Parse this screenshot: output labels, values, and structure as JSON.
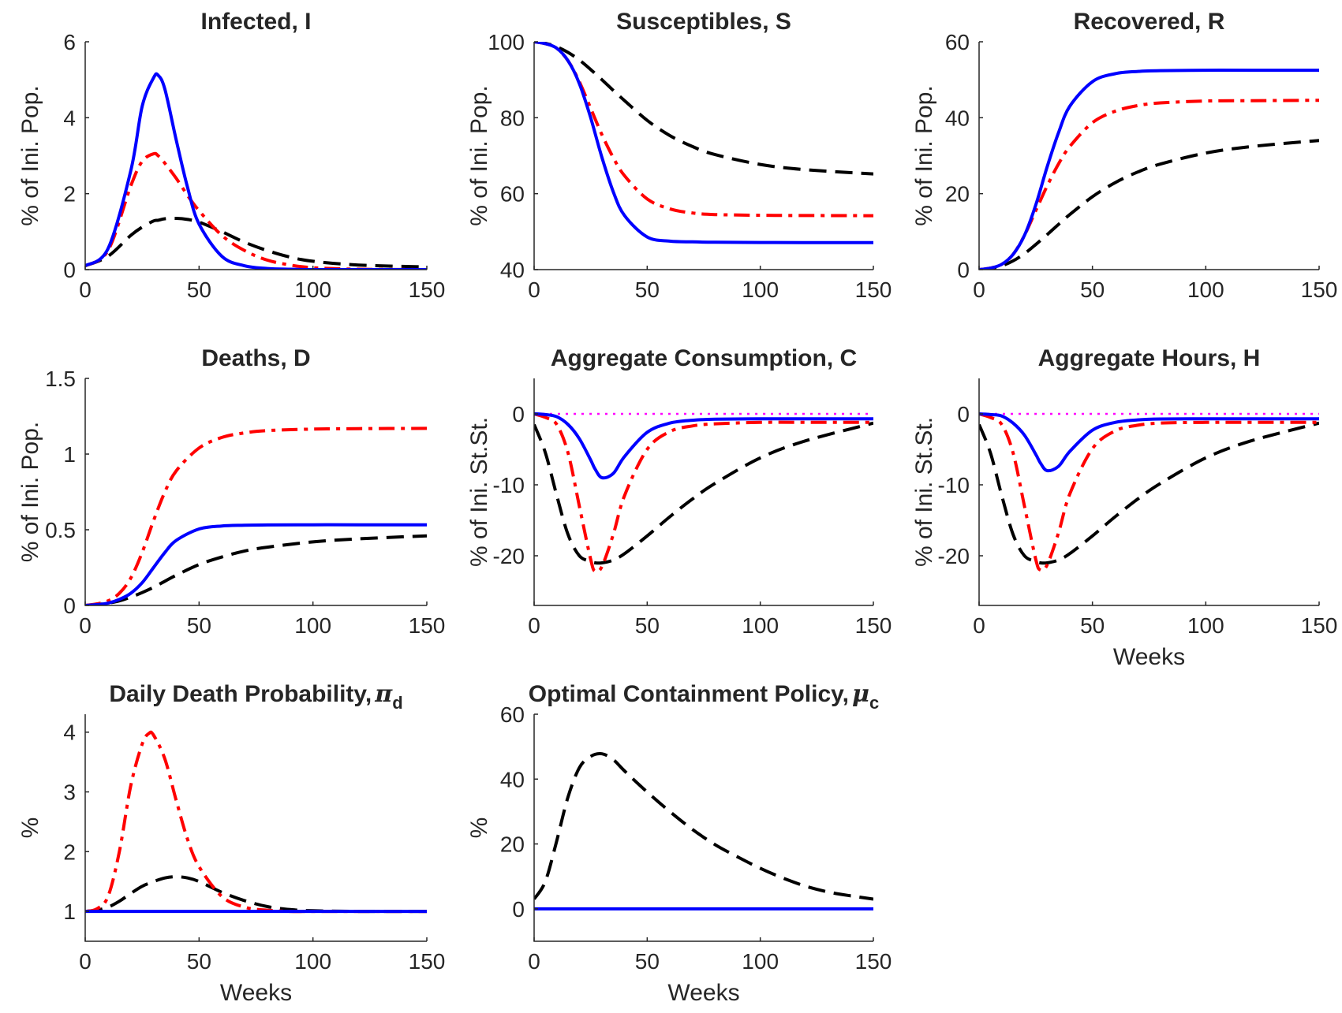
{
  "colors": {
    "blue": "#0000ff",
    "red": "#ff0000",
    "black": "#000000",
    "magenta": "#ff00ff",
    "axis": "#262626"
  },
  "chart_data": [
    {
      "id": "infected",
      "type": "line",
      "title": "Infected, I",
      "xlabel": "",
      "ylabel": "% of Ini. Pop.",
      "xlim": [
        0,
        150
      ],
      "ylim": [
        0,
        6
      ],
      "xticks": [
        0,
        50,
        100,
        150
      ],
      "yticks": [
        0,
        2,
        4,
        6
      ],
      "x": [
        0,
        10,
        20,
        25,
        30,
        32,
        35,
        40,
        45,
        50,
        60,
        70,
        80,
        90,
        100,
        120,
        150
      ],
      "series": [
        {
          "style": "black-dashed",
          "values": [
            0.1,
            0.35,
            0.9,
            1.12,
            1.28,
            1.3,
            1.34,
            1.35,
            1.32,
            1.25,
            1.0,
            0.72,
            0.5,
            0.33,
            0.22,
            0.12,
            0.07
          ]
        },
        {
          "style": "red-dashdot",
          "values": [
            0.1,
            0.5,
            2.2,
            2.85,
            3.05,
            3.0,
            2.8,
            2.4,
            1.95,
            1.55,
            0.9,
            0.5,
            0.25,
            0.12,
            0.05,
            0.01,
            0.0
          ]
        },
        {
          "style": "blue-solid",
          "values": [
            0.1,
            0.55,
            2.6,
            4.3,
            5.05,
            5.12,
            4.75,
            3.4,
            2.15,
            1.2,
            0.35,
            0.1,
            0.03,
            0.01,
            0.0,
            0.0,
            0.0
          ]
        }
      ]
    },
    {
      "id": "susceptibles",
      "type": "line",
      "title": "Susceptibles, S",
      "xlabel": "",
      "ylabel": "% of Ini. Pop.",
      "xlim": [
        0,
        150
      ],
      "ylim": [
        40,
        100
      ],
      "xticks": [
        0,
        50,
        100,
        150
      ],
      "yticks": [
        40,
        60,
        80,
        100
      ],
      "x": [
        0,
        5,
        10,
        15,
        20,
        25,
        30,
        35,
        40,
        50,
        60,
        70,
        80,
        100,
        120,
        150
      ],
      "series": [
        {
          "style": "black-dashed",
          "values": [
            100,
            99.6,
            98.7,
            97.2,
            95.2,
            92.7,
            90.0,
            87.2,
            84.5,
            79.3,
            75.3,
            72.4,
            70.3,
            67.7,
            66.3,
            65.2
          ]
        },
        {
          "style": "red-dashdot",
          "values": [
            100,
            99.5,
            98.3,
            95.0,
            89.5,
            82.5,
            75.5,
            69.5,
            64.7,
            58.6,
            56.0,
            54.9,
            54.5,
            54.3,
            54.25,
            54.2
          ]
        },
        {
          "style": "blue-solid",
          "values": [
            100,
            99.5,
            98.3,
            95.0,
            89.0,
            80.0,
            69.5,
            60.5,
            54.2,
            48.6,
            47.5,
            47.3,
            47.2,
            47.15,
            47.1,
            47.1
          ]
        }
      ]
    },
    {
      "id": "recovered",
      "type": "line",
      "title": "Recovered, R",
      "xlabel": "",
      "ylabel": "% of Ini. Pop.",
      "xlim": [
        0,
        150
      ],
      "ylim": [
        0,
        60
      ],
      "xticks": [
        0,
        50,
        100,
        150
      ],
      "yticks": [
        0,
        20,
        40,
        60
      ],
      "x": [
        0,
        5,
        10,
        15,
        20,
        25,
        30,
        35,
        40,
        50,
        60,
        70,
        80,
        100,
        120,
        150
      ],
      "series": [
        {
          "style": "black-dashed",
          "values": [
            0,
            0.3,
            1.0,
            2.3,
            4.2,
            6.6,
            9.2,
            11.9,
            14.5,
            19.2,
            22.9,
            25.7,
            27.8,
            30.7,
            32.4,
            34.0
          ]
        },
        {
          "style": "red-dashdot",
          "values": [
            0,
            0.4,
            1.4,
            4.0,
            9.0,
            15.5,
            22.0,
            27.8,
            32.4,
            38.7,
            41.7,
            43.2,
            43.9,
            44.4,
            44.5,
            44.6
          ]
        },
        {
          "style": "blue-solid",
          "values": [
            0,
            0.4,
            1.4,
            4.0,
            9.0,
            17.0,
            27.0,
            36.0,
            43.0,
            49.5,
            51.6,
            52.2,
            52.4,
            52.5,
            52.5,
            52.5
          ]
        }
      ]
    },
    {
      "id": "deaths",
      "type": "line",
      "title": "Deaths, D",
      "xlabel": "",
      "ylabel": "% of Ini. Pop.",
      "xlim": [
        0,
        150
      ],
      "ylim": [
        0,
        1.5
      ],
      "xticks": [
        0,
        50,
        100,
        150
      ],
      "yticks": [
        0,
        0.5,
        1,
        1.5
      ],
      "x": [
        0,
        5,
        10,
        15,
        20,
        25,
        30,
        35,
        40,
        50,
        60,
        70,
        80,
        100,
        120,
        150
      ],
      "series": [
        {
          "style": "black-dashed",
          "values": [
            0,
            0.005,
            0.015,
            0.03,
            0.055,
            0.085,
            0.12,
            0.16,
            0.2,
            0.27,
            0.32,
            0.36,
            0.385,
            0.42,
            0.44,
            0.46
          ]
        },
        {
          "style": "red-dashdot",
          "values": [
            0,
            0.01,
            0.03,
            0.08,
            0.18,
            0.35,
            0.56,
            0.75,
            0.89,
            1.04,
            1.11,
            1.14,
            1.155,
            1.165,
            1.168,
            1.17
          ]
        },
        {
          "style": "blue-solid",
          "values": [
            0,
            0.005,
            0.015,
            0.04,
            0.08,
            0.15,
            0.25,
            0.35,
            0.43,
            0.505,
            0.525,
            0.53,
            0.532,
            0.533,
            0.533,
            0.533
          ]
        }
      ]
    },
    {
      "id": "consumption",
      "type": "line",
      "title": "Aggregate Consumption, C",
      "xlabel": "",
      "ylabel": "% of Ini. St.St.",
      "xlim": [
        0,
        150
      ],
      "ylim": [
        -27,
        5
      ],
      "xticks": [
        0,
        50,
        100,
        150
      ],
      "yticks": [
        -20,
        -10,
        0
      ],
      "x": [
        0,
        5,
        10,
        15,
        20,
        25,
        27,
        30,
        35,
        40,
        50,
        60,
        70,
        80,
        100,
        120,
        150
      ],
      "series": [
        {
          "style": "black-dashed",
          "values": [
            -1.5,
            -5.5,
            -11.5,
            -17.0,
            -20.0,
            -20.8,
            -21.0,
            -21.0,
            -20.6,
            -19.7,
            -17.2,
            -14.5,
            -12.0,
            -9.8,
            -6.2,
            -3.8,
            -1.3
          ]
        },
        {
          "style": "red-dashdot",
          "values": [
            0,
            -0.5,
            -1.5,
            -5.5,
            -13.0,
            -20.5,
            -22.2,
            -21.5,
            -17.0,
            -11.5,
            -5.0,
            -2.5,
            -1.7,
            -1.4,
            -1.2,
            -1.2,
            -1.2
          ]
        },
        {
          "style": "blue-solid",
          "values": [
            0,
            -0.1,
            -0.4,
            -1.5,
            -3.5,
            -6.5,
            -7.8,
            -9.0,
            -8.4,
            -6.0,
            -2.6,
            -1.3,
            -0.9,
            -0.75,
            -0.7,
            -0.7,
            -0.7
          ]
        },
        {
          "style": "magenta-dotted",
          "values": [
            0,
            0,
            0,
            0,
            0,
            0,
            0,
            0,
            0,
            0,
            0,
            0,
            0,
            0,
            0,
            0,
            0
          ]
        }
      ]
    },
    {
      "id": "hours",
      "type": "line",
      "title": "Aggregate Hours, H",
      "xlabel": "Weeks",
      "ylabel": "% of Ini. St.St.",
      "xlim": [
        0,
        150
      ],
      "ylim": [
        -27,
        5
      ],
      "xticks": [
        0,
        50,
        100,
        150
      ],
      "yticks": [
        -20,
        -10,
        0
      ],
      "x": [
        0,
        5,
        10,
        15,
        20,
        25,
        27,
        30,
        35,
        40,
        50,
        60,
        70,
        80,
        100,
        120,
        150
      ],
      "series": [
        {
          "style": "black-dashed",
          "values": [
            -1.5,
            -5.5,
            -11.5,
            -17.0,
            -20.0,
            -20.8,
            -21.0,
            -21.0,
            -20.6,
            -19.7,
            -17.2,
            -14.5,
            -12.0,
            -9.8,
            -6.2,
            -3.8,
            -1.3
          ]
        },
        {
          "style": "red-dashdot",
          "values": [
            0,
            -0.5,
            -1.5,
            -5.5,
            -13.0,
            -20.5,
            -22.0,
            -21.3,
            -16.8,
            -11.3,
            -4.9,
            -2.4,
            -1.6,
            -1.3,
            -1.2,
            -1.2,
            -1.2
          ]
        },
        {
          "style": "blue-solid",
          "values": [
            0,
            -0.1,
            -0.3,
            -1.3,
            -3.0,
            -5.7,
            -6.9,
            -8.0,
            -7.4,
            -5.3,
            -2.3,
            -1.2,
            -0.85,
            -0.72,
            -0.7,
            -0.7,
            -0.7
          ]
        },
        {
          "style": "magenta-dotted",
          "values": [
            0,
            0,
            0,
            0,
            0,
            0,
            0,
            0,
            0,
            0,
            0,
            0,
            0,
            0,
            0,
            0,
            0
          ]
        }
      ]
    },
    {
      "id": "death-prob",
      "type": "line",
      "title": "Daily Death Probability,",
      "title_symbol": "π",
      "title_sub": "d",
      "xlabel": "Weeks",
      "ylabel": "%",
      "xlim": [
        0,
        150
      ],
      "ylim": [
        0.5,
        4.3
      ],
      "xticks": [
        0,
        50,
        100,
        150
      ],
      "yticks": [
        1,
        2,
        3,
        4
      ],
      "x": [
        0,
        5,
        10,
        15,
        20,
        25,
        28,
        30,
        35,
        40,
        45,
        50,
        60,
        70,
        80,
        90,
        100,
        120,
        150
      ],
      "series": [
        {
          "style": "black-dashed",
          "values": [
            1.0,
            1.02,
            1.07,
            1.17,
            1.3,
            1.42,
            1.47,
            1.5,
            1.56,
            1.58,
            1.56,
            1.5,
            1.32,
            1.18,
            1.08,
            1.03,
            1.01,
            1.0,
            1.0
          ]
        },
        {
          "style": "red-dashdot",
          "values": [
            1.0,
            1.04,
            1.25,
            2.0,
            3.1,
            3.8,
            3.98,
            3.95,
            3.55,
            2.85,
            2.2,
            1.75,
            1.25,
            1.07,
            1.02,
            1.0,
            1.0,
            1.0,
            1.0
          ]
        },
        {
          "style": "blue-solid",
          "values": [
            1.0,
            1.0,
            1.0,
            1.0,
            1.0,
            1.0,
            1.0,
            1.0,
            1.0,
            1.0,
            1.0,
            1.0,
            1.0,
            1.0,
            1.0,
            1.0,
            1.0,
            1.0,
            1.0
          ]
        }
      ]
    },
    {
      "id": "containment",
      "type": "line",
      "title": "Optimal Containment Policy,",
      "title_symbol": "μ",
      "title_sub": "c",
      "xlabel": "Weeks",
      "ylabel": "%",
      "xlim": [
        0,
        150
      ],
      "ylim": [
        -10,
        60
      ],
      "xticks": [
        0,
        50,
        100,
        150
      ],
      "yticks": [
        0,
        20,
        40,
        60
      ],
      "x": [
        0,
        5,
        10,
        15,
        20,
        25,
        30,
        35,
        40,
        50,
        60,
        70,
        80,
        90,
        100,
        110,
        120,
        130,
        140,
        150
      ],
      "series": [
        {
          "style": "black-dashed",
          "values": [
            3.0,
            8.5,
            21.0,
            34.5,
            43.5,
            47.0,
            47.8,
            46.0,
            42.5,
            36.0,
            30.0,
            24.5,
            19.8,
            16.0,
            12.5,
            9.5,
            7.0,
            5.2,
            4.0,
            3.0
          ]
        },
        {
          "style": "blue-solid",
          "values": [
            0,
            0,
            0,
            0,
            0,
            0,
            0,
            0,
            0,
            0,
            0,
            0,
            0,
            0,
            0,
            0,
            0,
            0,
            0,
            0
          ]
        }
      ]
    }
  ]
}
